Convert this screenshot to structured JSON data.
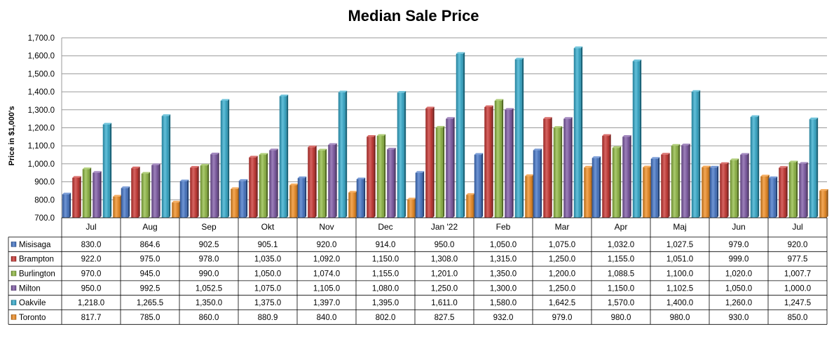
{
  "chart_data": {
    "type": "bar",
    "title": "Median Sale Price",
    "ylabel": "Price in $1,000's",
    "xlabel": "",
    "ylim": [
      700,
      1700
    ],
    "yticks": [
      "700.0",
      "800.0",
      "900.0",
      "1,000.0",
      "1,100.0",
      "1,200.0",
      "1,300.0",
      "1,400.0",
      "1,500.0",
      "1,600.0",
      "1,700.0"
    ],
    "categories": [
      "Jul",
      "Aug",
      "Sep",
      "Okt",
      "Nov",
      "Dec",
      "Jan '22",
      "Feb",
      "Mar",
      "Apr",
      "Maj",
      "Jun",
      "Jul"
    ],
    "legend_placement": "data-table-left",
    "series": [
      {
        "name": "Misisaga",
        "color": "#3f72c6",
        "values": [
          830.0,
          864.6,
          902.5,
          905.1,
          920.0,
          914.0,
          950.0,
          1050.0,
          1075.0,
          1032.0,
          1027.5,
          979.0,
          920.0
        ],
        "labels": [
          "830.0",
          "864.6",
          "902.5",
          "905.1",
          "920.0",
          "914.0",
          "950.0",
          "1,050.0",
          "1,075.0",
          "1,032.0",
          "1,027.5",
          "979.0",
          "920.0"
        ]
      },
      {
        "name": "Brampton",
        "color": "#c8302c",
        "values": [
          922.0,
          975.0,
          978.0,
          1035.0,
          1092.0,
          1150.0,
          1308.0,
          1315.0,
          1250.0,
          1155.0,
          1051.0,
          999.0,
          977.5
        ],
        "labels": [
          "922.0",
          "975.0",
          "978.0",
          "1,035.0",
          "1,092.0",
          "1,150.0",
          "1,308.0",
          "1,315.0",
          "1,250.0",
          "1,155.0",
          "1,051.0",
          "999.0",
          "977.5"
        ]
      },
      {
        "name": "Burlington",
        "color": "#8db83e",
        "values": [
          970.0,
          945.0,
          990.0,
          1050.0,
          1074.0,
          1155.0,
          1201.0,
          1350.0,
          1200.0,
          1088.5,
          1100.0,
          1020.0,
          1007.7
        ],
        "labels": [
          "970.0",
          "945.0",
          "990.0",
          "1,050.0",
          "1,074.0",
          "1,155.0",
          "1,201.0",
          "1,350.0",
          "1,200.0",
          "1,088.5",
          "1,100.0",
          "1,020.0",
          "1,007.7"
        ]
      },
      {
        "name": "Milton",
        "color": "#7b55a3",
        "values": [
          950.0,
          992.5,
          1052.5,
          1075.0,
          1105.0,
          1080.0,
          1250.0,
          1300.0,
          1250.0,
          1150.0,
          1102.5,
          1050.0,
          1000.0
        ],
        "labels": [
          "950.0",
          "992.5",
          "1,052.5",
          "1,075.0",
          "1,105.0",
          "1,080.0",
          "1,250.0",
          "1,300.0",
          "1,250.0",
          "1,150.0",
          "1,102.5",
          "1,050.0",
          "1,000.0"
        ]
      },
      {
        "name": "Oakvile",
        "color": "#2ea9cc",
        "values": [
          1218.0,
          1265.5,
          1350.0,
          1375.0,
          1397.0,
          1395.0,
          1611.0,
          1580.0,
          1642.5,
          1570.0,
          1400.0,
          1260.0,
          1247.5
        ],
        "labels": [
          "1,218.0",
          "1,265.5",
          "1,350.0",
          "1,375.0",
          "1,397.0",
          "1,395.0",
          "1,611.0",
          "1,580.0",
          "1,642.5",
          "1,570.0",
          "1,400.0",
          "1,260.0",
          "1,247.5"
        ]
      },
      {
        "name": "Toronto",
        "color": "#f08a1c",
        "values": [
          817.7,
          785.0,
          860.0,
          880.9,
          840.0,
          802.0,
          827.5,
          932.0,
          979.0,
          980.0,
          980.0,
          930.0,
          850.0
        ],
        "labels": [
          "817.7",
          "785.0",
          "860.0",
          "880.9",
          "840.0",
          "802.0",
          "827.5",
          "932.0",
          "979.0",
          "980.0",
          "980.0",
          "930.0",
          "850.0"
        ]
      }
    ]
  }
}
